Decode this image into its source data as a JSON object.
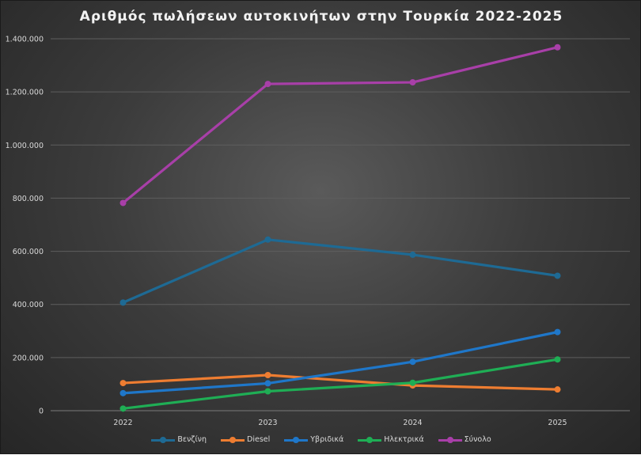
{
  "chart_data": {
    "type": "line",
    "title": "Αριθμός πωλήσεων αυτοκινήτων στην Τουρκία 2022-2025",
    "xlabel": "",
    "ylabel": "",
    "categories": [
      "2022",
      "2023",
      "2024",
      "2025"
    ],
    "ylim": [
      0,
      1400000
    ],
    "y_ticks": [
      "0",
      "200.000",
      "400.000",
      "600.000",
      "800.000",
      "1.000.000",
      "1.200.000",
      "1.400.000"
    ],
    "grid": true,
    "legend_position": "bottom",
    "series": [
      {
        "name": "Βενζίνη",
        "color": "#1e6a94",
        "values": [
          407000,
          644000,
          587000,
          508000
        ]
      },
      {
        "name": "Diesel",
        "color": "#ee7d31",
        "values": [
          104000,
          134000,
          95000,
          80000
        ]
      },
      {
        "name": "Υβριδικά",
        "color": "#1f77c9",
        "values": [
          66000,
          103000,
          184000,
          296000
        ]
      },
      {
        "name": "Ηλεκτρικά",
        "color": "#1fae55",
        "values": [
          8000,
          73000,
          105000,
          193000
        ]
      },
      {
        "name": "Σύνολο",
        "color": "#a83fa8",
        "values": [
          782000,
          1230000,
          1236000,
          1368000
        ]
      }
    ]
  }
}
